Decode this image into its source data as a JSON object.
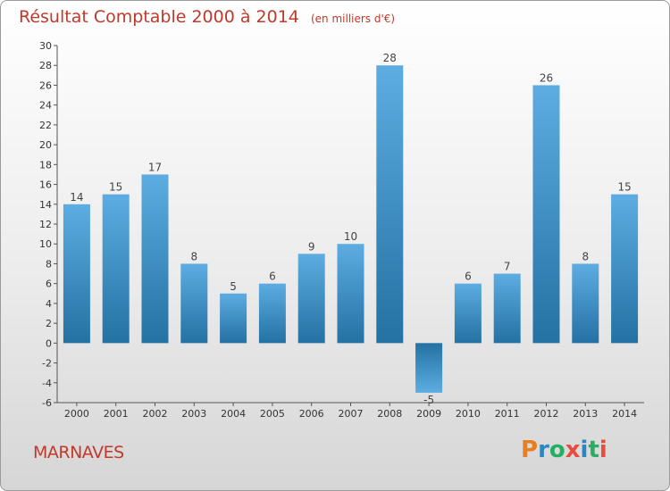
{
  "header": {
    "title": "Résultat Comptable 2000 à 2014",
    "subtitle": "(en milliers d'€)"
  },
  "footer": {
    "place": "MARNAVES",
    "logo_letters": [
      "P",
      "r",
      "o",
      "x",
      "i",
      "t",
      "i"
    ],
    "logo_colors": [
      "#e67e22",
      "#2e86c1",
      "#27ae60",
      "#e74c3c",
      "#2e86c1",
      "#27ae60",
      "#e74c3c"
    ]
  },
  "colors": {
    "accent": "#c0392b",
    "bar_light": "#5dade2",
    "bar_dark": "#2471a3"
  },
  "chart_data": {
    "type": "bar",
    "title": "Résultat Comptable 2000 à 2014",
    "subtitle": "(en milliers d'€)",
    "xlabel": "",
    "ylabel": "",
    "categories": [
      "2000",
      "2001",
      "2002",
      "2003",
      "2004",
      "2005",
      "2006",
      "2007",
      "2008",
      "2009",
      "2010",
      "2011",
      "2012",
      "2013",
      "2014"
    ],
    "values": [
      14,
      15,
      17,
      8,
      5,
      6,
      9,
      10,
      28,
      -5,
      6,
      7,
      26,
      8,
      15
    ],
    "ylim": [
      -6,
      30
    ],
    "yticks": [
      -6,
      -4,
      -2,
      0,
      2,
      4,
      6,
      8,
      10,
      12,
      14,
      16,
      18,
      20,
      22,
      24,
      26,
      28,
      30
    ],
    "grid": false
  }
}
